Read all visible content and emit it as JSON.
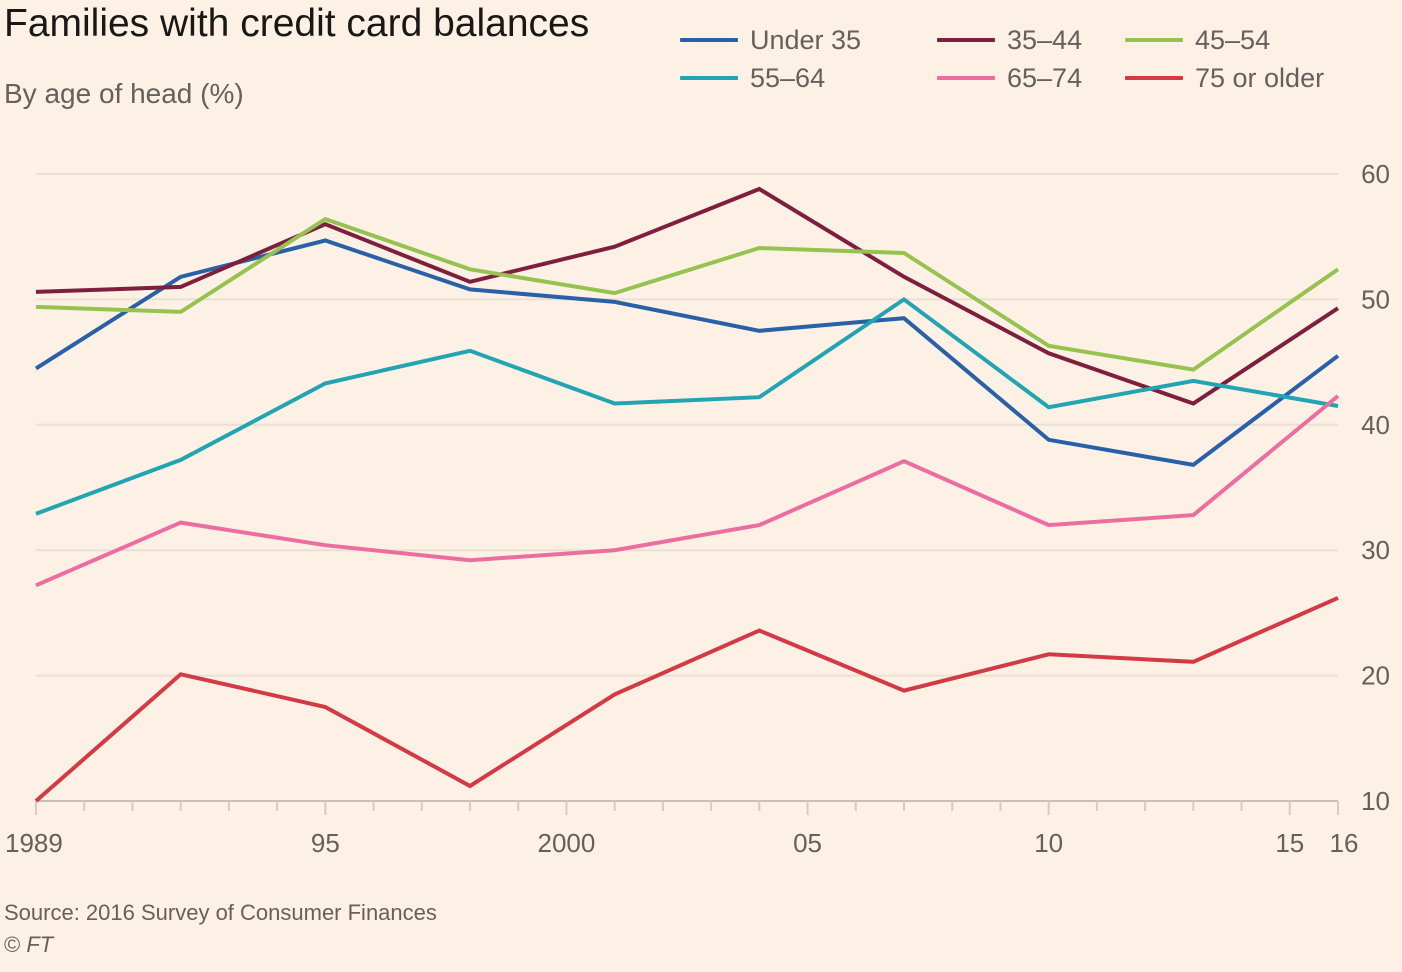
{
  "header": {
    "title": "Families with credit card balances",
    "subtitle": "By age of head (%)"
  },
  "footer": {
    "source": "Source: 2016 Survey of Consumer Finances",
    "copyright_mark": "©",
    "copyright_brand": "FT"
  },
  "chart_data": {
    "type": "line",
    "title": "Families with credit card balances",
    "subtitle": "By age of head (%)",
    "xlabel": "",
    "ylabel": "",
    "x": [
      1989,
      1992,
      1995,
      1998,
      2001,
      2004,
      2007,
      2010,
      2013,
      2016
    ],
    "xlim": [
      1989,
      2016
    ],
    "ylim": [
      10,
      60
    ],
    "y_ticks": [
      10,
      20,
      30,
      40,
      50,
      60
    ],
    "x_ticks": [
      1989,
      1995,
      2000,
      2005,
      2010,
      2015,
      2016
    ],
    "x_tick_labels": [
      "1989",
      "95",
      "2000",
      "05",
      "10",
      "15",
      "16"
    ],
    "grid": "horizontal",
    "y_axis_side": "right",
    "legend_position": "top-right",
    "series": [
      {
        "name": "Under 35",
        "color": "#2960a8",
        "values": [
          44.5,
          51.8,
          54.7,
          50.8,
          49.8,
          47.5,
          48.5,
          38.8,
          36.8,
          45.5
        ]
      },
      {
        "name": "35–44",
        "color": "#7f1f3e",
        "values": [
          50.6,
          51.0,
          56.0,
          51.4,
          54.2,
          58.8,
          51.8,
          45.7,
          41.7,
          49.3
        ]
      },
      {
        "name": "45–54",
        "color": "#96c350",
        "values": [
          49.4,
          49.0,
          56.4,
          52.4,
          50.5,
          54.1,
          53.7,
          46.3,
          44.4,
          52.4
        ]
      },
      {
        "name": "55–64",
        "color": "#23a4b2",
        "values": [
          32.9,
          37.2,
          43.3,
          45.9,
          41.7,
          42.2,
          50.0,
          41.4,
          43.5,
          41.5
        ]
      },
      {
        "name": "65–74",
        "color": "#ec6ea0",
        "values": [
          27.2,
          32.2,
          30.4,
          29.2,
          30.0,
          32.0,
          37.1,
          32.0,
          32.8,
          42.3
        ]
      },
      {
        "name": "75 or older",
        "color": "#d43a45",
        "values": [
          10.0,
          20.1,
          17.5,
          11.2,
          18.5,
          23.6,
          18.8,
          21.7,
          21.1,
          26.2
        ]
      }
    ]
  }
}
